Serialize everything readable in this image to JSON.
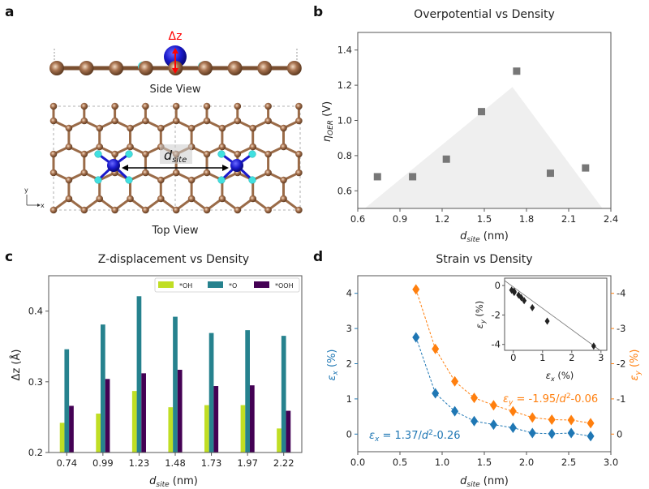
{
  "panel_labels": [
    "a",
    "b",
    "c",
    "d"
  ],
  "panel_a": {
    "side_view_label": "Side View",
    "top_view_label": "Top View",
    "delta_z_label": "Δz",
    "dsite_label_main": "d",
    "dsite_label_sub": "site",
    "axis_y": "y",
    "axis_x": "x",
    "colors": {
      "carbon": "#8b5e3c",
      "nitrogen": "#40e0e0",
      "metal": "#1a1acc",
      "arrow": "#ff0000"
    }
  },
  "chart_data": [
    {
      "id": "b",
      "type": "scatter",
      "title": "Overpotential vs Density",
      "xlabel_main": "d",
      "xlabel_sub": "site",
      "xlabel_unit": " (nm)",
      "ylabel_main": "η",
      "ylabel_sub": "OER",
      "ylabel_unit": " (V)",
      "xlim": [
        0.6,
        2.4
      ],
      "ylim": [
        0.5,
        1.5
      ],
      "xticks": [
        0.6,
        0.9,
        1.2,
        1.5,
        1.8,
        2.1,
        2.4
      ],
      "xtick_labels": [
        "0.6",
        "0.9",
        "1.2",
        "1.5",
        "1.8",
        "2.1",
        "2.4"
      ],
      "yticks": [
        0.6,
        0.8,
        1.0,
        1.2,
        1.4
      ],
      "ytick_labels": [
        "0.6",
        "0.8",
        "1.0",
        "1.2",
        "1.4"
      ],
      "x": [
        0.74,
        0.99,
        1.23,
        1.48,
        1.73,
        1.97,
        2.22
      ],
      "y": [
        0.68,
        0.68,
        0.78,
        1.05,
        1.28,
        0.7,
        0.73
      ],
      "marker_color": "#777777",
      "shaded_triangle": {
        "points": [
          [
            0.65,
            0.5
          ],
          [
            1.7,
            1.19
          ],
          [
            2.34,
            0.5
          ]
        ],
        "color": "#efefef"
      }
    },
    {
      "id": "c",
      "type": "bar",
      "title": "Z-displacement vs Density",
      "xlabel_main": "d",
      "xlabel_sub": "site",
      "xlabel_unit": " (nm)",
      "ylabel": "Δz (Å)",
      "categories": [
        "0.74",
        "0.99",
        "1.23",
        "1.48",
        "1.73",
        "1.97",
        "2.22"
      ],
      "ylim": [
        0.2,
        0.45
      ],
      "yticks": [
        0.2,
        0.3,
        0.4
      ],
      "ytick_labels": [
        "0.2",
        "0.3",
        "0.4"
      ],
      "legend_position": "top-right",
      "series": [
        {
          "name": "*OH",
          "color": "#c0de24",
          "values": [
            0.242,
            0.255,
            0.287,
            0.264,
            0.267,
            0.267,
            0.234
          ]
        },
        {
          "name": "*O",
          "color": "#26828e",
          "values": [
            0.346,
            0.381,
            0.421,
            0.392,
            0.369,
            0.373,
            0.365
          ]
        },
        {
          "name": "*OOH",
          "color": "#440154",
          "values": [
            0.266,
            0.304,
            0.312,
            0.317,
            0.294,
            0.295,
            0.259
          ]
        }
      ]
    },
    {
      "id": "d",
      "type": "scatter",
      "title": "Strain vs Density",
      "xlabel_main": "d",
      "xlabel_sub": "site",
      "xlabel_unit": " (nm)",
      "xlim": [
        0.0,
        3.0
      ],
      "xticks": [
        0.0,
        0.5,
        1.0,
        1.5,
        2.0,
        2.5,
        3.0
      ],
      "xtick_labels": [
        "0.0",
        "0.5",
        "1.0",
        "1.5",
        "2.0",
        "2.5",
        "3.0"
      ],
      "ylim_left": [
        -0.5,
        4.5
      ],
      "yticks_left": [
        0,
        1,
        2,
        3,
        4
      ],
      "ytick_labels_left": [
        "0",
        "1",
        "2",
        "3",
        "4"
      ],
      "ylabel_left_main": "ε",
      "ylabel_left_sub": "x",
      "ylabel_left_unit": " (%)",
      "ylim_right": [
        0.5,
        -4.5
      ],
      "yticks_right": [
        0,
        -1,
        -2,
        -3,
        -4
      ],
      "ytick_labels_right": [
        "0",
        "-1",
        "-2",
        "-3",
        "-4"
      ],
      "ylabel_right_main": "ε",
      "ylabel_right_sub": "y",
      "ylabel_right_unit": " (%)",
      "x": [
        0.69,
        0.92,
        1.15,
        1.38,
        1.61,
        1.84,
        2.07,
        2.3,
        2.53,
        2.76
      ],
      "series": [
        {
          "name": "εx",
          "axis": "left",
          "color": "#1f77b4",
          "values": [
            2.75,
            1.16,
            0.65,
            0.37,
            0.27,
            0.18,
            0.03,
            0.01,
            0.03,
            -0.06
          ],
          "fit": {
            "a": 1.37,
            "b": -0.26
          },
          "annotation_main": "ε",
          "annotation_sub": "x",
          "annotation_text": " = 1.37/",
          "annotation_d": "d",
          "annotation_sup": "2",
          "annotation_tail": "-0.26"
        },
        {
          "name": "εy",
          "axis": "right",
          "color": "#ff7f0e",
          "values": [
            -4.11,
            -2.42,
            -1.5,
            -1.03,
            -0.82,
            -0.65,
            -0.47,
            -0.41,
            -0.4,
            -0.31
          ],
          "fit": {
            "a": -1.95,
            "b": -0.06
          },
          "annotation_main": "ε",
          "annotation_sub": "y",
          "annotation_text": " = -1.95/",
          "annotation_d": "d",
          "annotation_sup": "2",
          "annotation_tail": "-0.06"
        }
      ],
      "inset": {
        "type": "scatter",
        "xlabel_main": "ε",
        "xlabel_sub": "x",
        "xlabel_unit": " (%)",
        "ylabel_main": "ε",
        "ylabel_sub": "y",
        "ylabel_unit": " (%)",
        "xlim": [
          -0.3,
          3.2
        ],
        "ylim": [
          -4.4,
          0.5
        ],
        "xticks": [
          0,
          1,
          2,
          3
        ],
        "xtick_labels": [
          "0",
          "1",
          "2",
          "3"
        ],
        "yticks": [
          0,
          -2,
          -4
        ],
        "ytick_labels": [
          "0",
          "-2",
          "-4"
        ],
        "points_x": [
          2.75,
          1.16,
          0.65,
          0.37,
          0.27,
          0.18,
          0.03,
          0.01,
          0.03,
          -0.06
        ],
        "points_y": [
          -4.11,
          -2.42,
          -1.5,
          -1.03,
          -0.82,
          -0.65,
          -0.47,
          -0.41,
          -0.4,
          -0.31
        ],
        "fit_line": {
          "slope": -1.45,
          "intercept": -0.1
        },
        "marker_color": "#222222"
      }
    }
  ]
}
